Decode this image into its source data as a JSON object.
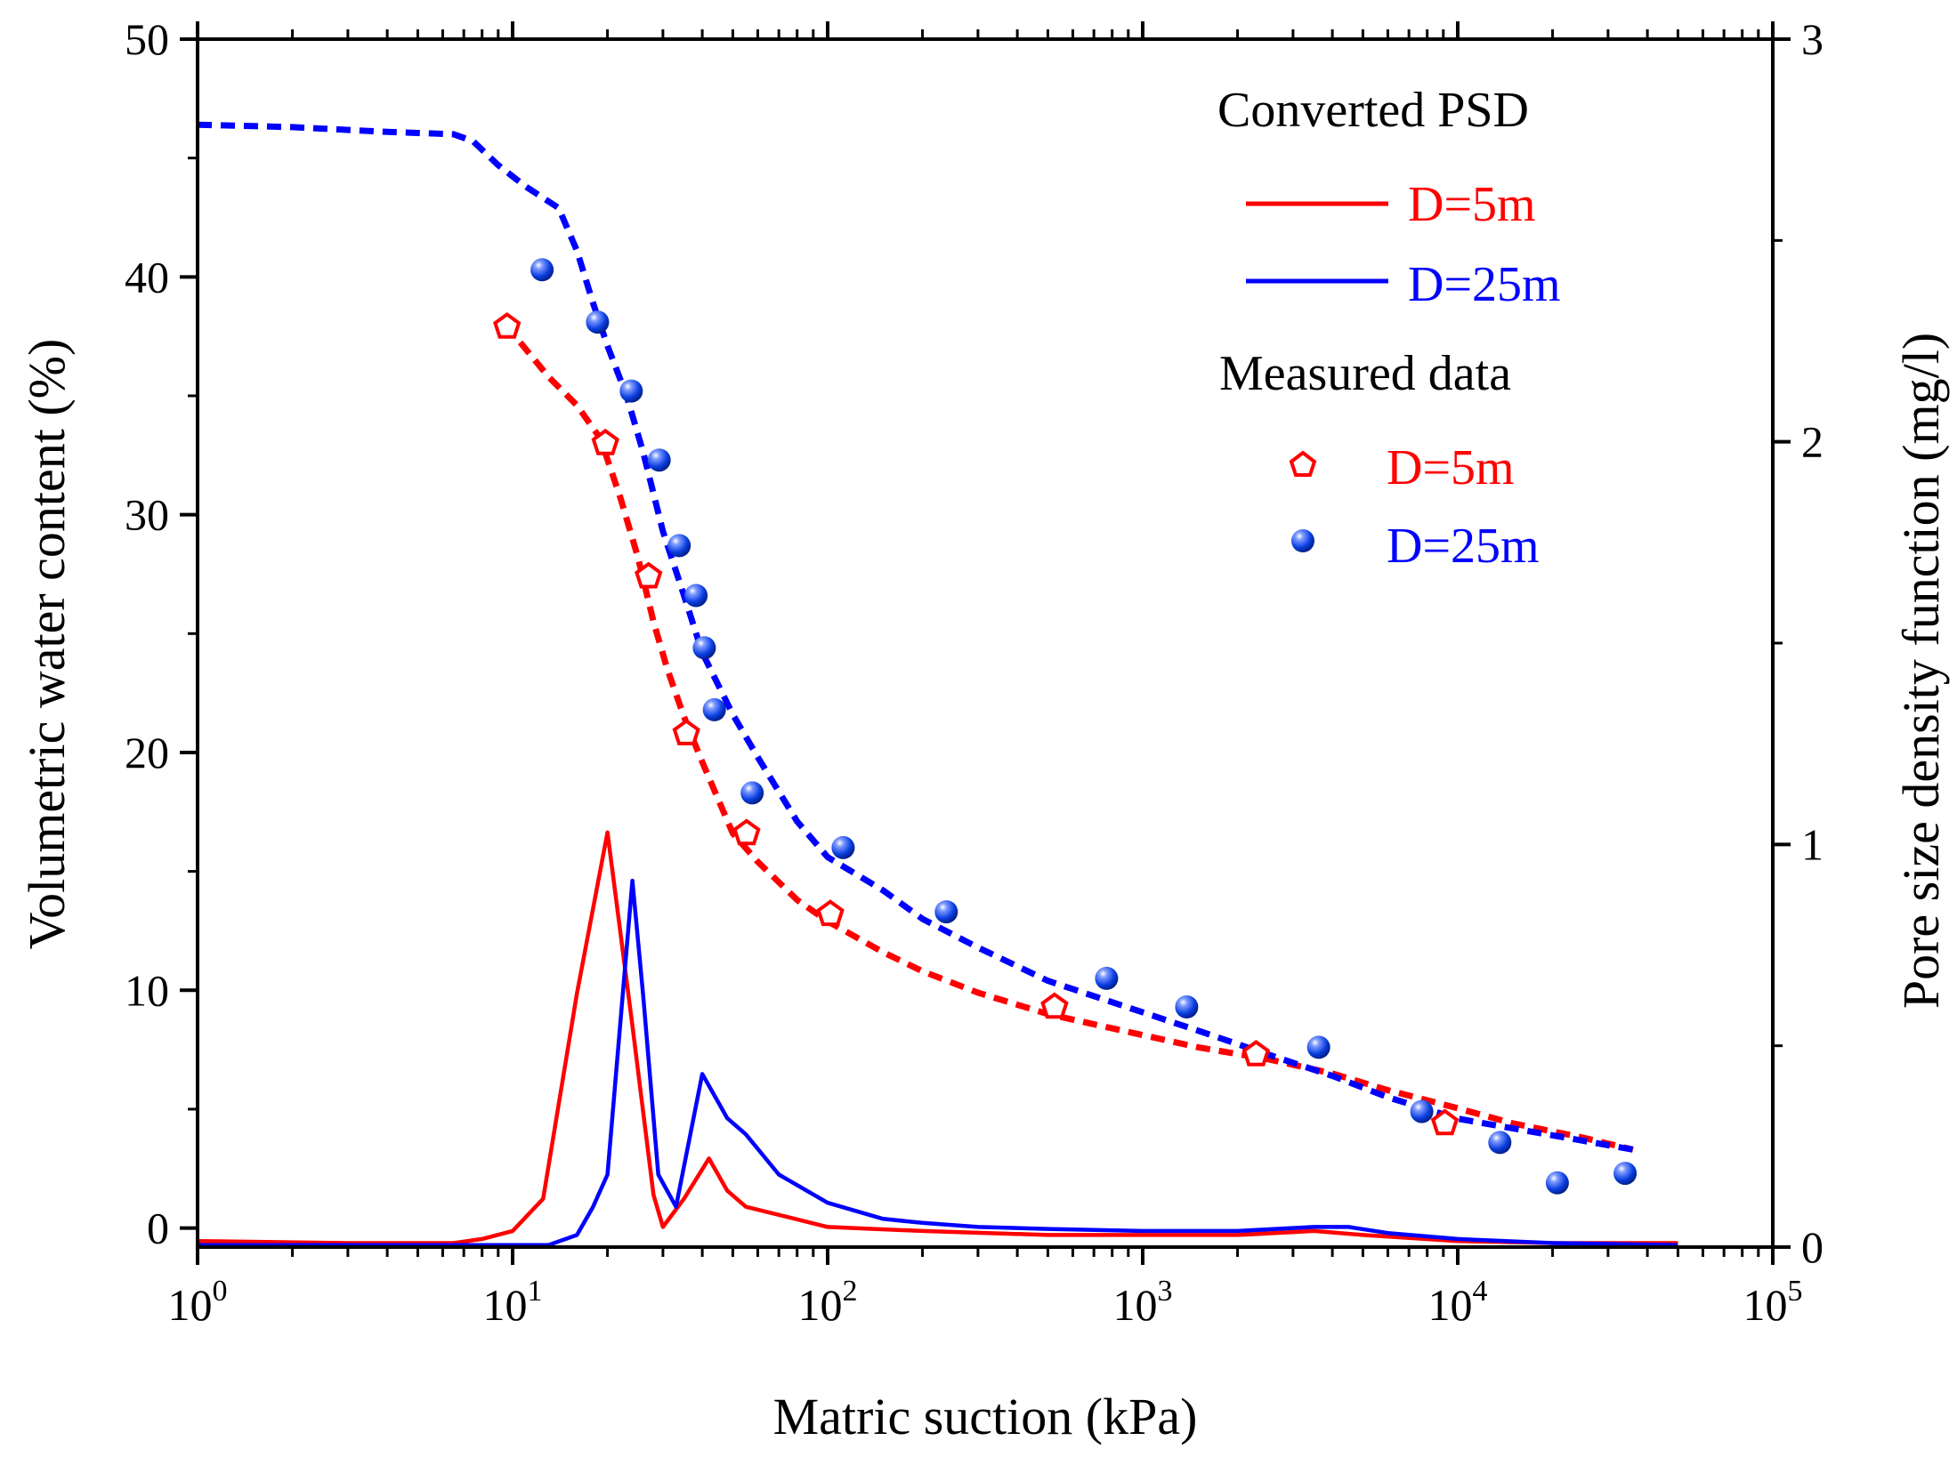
{
  "chart_data": {
    "type": "line",
    "x_axis": {
      "label": "Matric suction (kPa)",
      "scale": "log",
      "xlim": [
        1,
        100000
      ],
      "ticks": [
        {
          "value": 1,
          "base": "10",
          "exp": "0"
        },
        {
          "value": 10,
          "base": "10",
          "exp": "1"
        },
        {
          "value": 100,
          "base": "10",
          "exp": "2"
        },
        {
          "value": 1000,
          "base": "10",
          "exp": "3"
        },
        {
          "value": 10000,
          "base": "10",
          "exp": "4"
        },
        {
          "value": 100000,
          "base": "10",
          "exp": "5"
        }
      ]
    },
    "y_left": {
      "label": "Volumetric water content (%)",
      "ylim": [
        -0.8,
        50
      ],
      "ticks": [
        {
          "value": 0,
          "label": "0"
        },
        {
          "value": 10,
          "label": "10"
        },
        {
          "value": 20,
          "label": "20"
        },
        {
          "value": 30,
          "label": "30"
        },
        {
          "value": 40,
          "label": "40"
        },
        {
          "value": 50,
          "label": "50"
        }
      ]
    },
    "y_right": {
      "label": "Pore size density function (mg/l)",
      "ylim": [
        0,
        3
      ],
      "ticks": [
        {
          "value": 0,
          "label": "0"
        },
        {
          "value": 1,
          "label": "1"
        },
        {
          "value": 2,
          "label": "2"
        },
        {
          "value": 3,
          "label": "3"
        }
      ]
    },
    "legend": {
      "placement": "top-right",
      "converted_heading": "Converted PSD",
      "measured_heading": "Measured data",
      "converted_labels": [
        "D=5m",
        "D=25m"
      ],
      "measured_labels": [
        "D=5m",
        "D=25m"
      ]
    },
    "colors": {
      "d5": "#ff0000",
      "d25": "#0000ff"
    },
    "series": [
      {
        "name": "D=5m fitted SWCC",
        "axis": "left",
        "style": "dashed",
        "color": "#ff0000",
        "x": [
          9.5,
          13,
          16,
          19,
          22,
          25,
          28,
          31,
          35,
          40,
          50,
          60,
          80,
          100,
          150,
          200,
          300,
          500,
          800,
          1500,
          2500,
          4000,
          6000,
          9000,
          15000,
          25000,
          36000
        ],
        "y": [
          38,
          35.8,
          34.6,
          33.2,
          30.7,
          28.2,
          25.5,
          23.5,
          21.5,
          19.6,
          16.6,
          15.4,
          13.8,
          12.9,
          11.6,
          10.8,
          9.9,
          9.0,
          8.4,
          7.6,
          7.1,
          6.5,
          5.8,
          5.2,
          4.4,
          3.8,
          3.3
        ]
      },
      {
        "name": "D=25m fitted SWCC",
        "axis": "left",
        "style": "dashed",
        "color": "#0000ff",
        "x": [
          1,
          2,
          4,
          6.5,
          7.5,
          9,
          11,
          14,
          16,
          18,
          20,
          23,
          26,
          30,
          35,
          40,
          50,
          60,
          80,
          100,
          150,
          200,
          300,
          500,
          800,
          1500,
          2500,
          4000,
          6000,
          10000,
          20000,
          36000
        ],
        "y": [
          46.4,
          46.3,
          46.1,
          46.0,
          45.7,
          44.7,
          43.8,
          42.9,
          41.1,
          38.9,
          37.1,
          35.0,
          32.6,
          29.3,
          26.6,
          24.2,
          21.6,
          19.8,
          17.1,
          15.6,
          14.2,
          13.0,
          11.8,
          10.4,
          9.5,
          8.3,
          7.3,
          6.4,
          5.5,
          4.6,
          3.9,
          3.3
        ]
      },
      {
        "name": "D=5m PSD",
        "axis": "right",
        "style": "solid",
        "color": "#ff0000",
        "x": [
          1,
          3,
          6.5,
          8,
          10,
          12.5,
          16,
          20,
          24,
          28,
          30,
          35,
          42,
          48,
          55,
          70,
          100,
          200,
          500,
          1000,
          2000,
          3500,
          5000,
          10000,
          20000,
          50000
        ],
        "y": [
          0.015,
          0.01,
          0.01,
          0.02,
          0.04,
          0.12,
          0.63,
          1.03,
          0.55,
          0.13,
          0.05,
          0.12,
          0.22,
          0.14,
          0.1,
          0.08,
          0.05,
          0.04,
          0.03,
          0.03,
          0.03,
          0.04,
          0.03,
          0.015,
          0.01,
          0.01
        ]
      },
      {
        "name": "D=25m PSD",
        "axis": "right",
        "style": "solid",
        "color": "#0000ff",
        "x": [
          1,
          5,
          10,
          13,
          16,
          18,
          20,
          24,
          26,
          29,
          33,
          40,
          48,
          55,
          70,
          100,
          150,
          200,
          300,
          500,
          1000,
          2000,
          3500,
          4500,
          6000,
          10000,
          20000,
          50000
        ],
        "y": [
          0.005,
          0.005,
          0.005,
          0.005,
          0.03,
          0.1,
          0.18,
          0.91,
          0.62,
          0.18,
          0.1,
          0.43,
          0.32,
          0.28,
          0.18,
          0.11,
          0.07,
          0.06,
          0.05,
          0.045,
          0.04,
          0.04,
          0.05,
          0.05,
          0.035,
          0.02,
          0.01,
          0.005
        ]
      },
      {
        "name": "D=5m measured",
        "axis": "left",
        "style": "marker-pentagon",
        "color": "#ff0000",
        "x": [
          9.6,
          19.7,
          27,
          35.6,
          55.3,
          102,
          525,
          2290,
          9100
        ],
        "y": [
          37.9,
          33.0,
          27.4,
          20.8,
          16.6,
          13.2,
          9.3,
          7.3,
          4.4
        ]
      },
      {
        "name": "D=25m measured",
        "axis": "left",
        "style": "marker-sphere",
        "color": "#0000ff",
        "x": [
          12.4,
          18.6,
          23.8,
          29.2,
          33.8,
          38.2,
          40.6,
          43.7,
          57.6,
          112,
          238,
          768,
          1379,
          3619,
          7690,
          13600,
          20700,
          34000
        ],
        "y": [
          40.3,
          38.1,
          35.2,
          32.3,
          28.7,
          26.6,
          24.4,
          21.8,
          18.3,
          16.0,
          13.3,
          10.5,
          9.3,
          7.6,
          4.9,
          3.6,
          1.9,
          2.3
        ]
      }
    ]
  }
}
